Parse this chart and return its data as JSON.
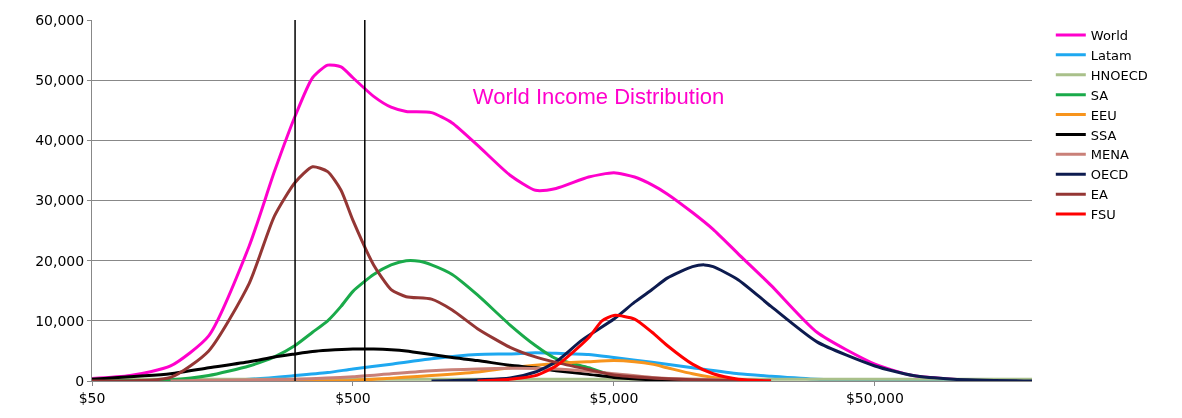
{
  "chart_data": {
    "type": "line",
    "title": "World Income Distribution",
    "log": "x",
    "grid": "y",
    "legend": "top right",
    "marker": "none",
    "line_style": "solid",
    "xlim": [
      50,
      200000
    ],
    "xticks": [
      {
        "value": 50,
        "label": "$50"
      },
      {
        "value": 500,
        "label": "$500"
      },
      {
        "value": 5000,
        "label": "$5,000"
      },
      {
        "value": 50000,
        "label": "$50,000"
      }
    ],
    "ylim": [
      0,
      60000
    ],
    "yticks": [
      0,
      {
        "value": 10000,
        "label": "10,000"
      },
      {
        "value": 20000,
        "label": "20,000"
      },
      {
        "value": 30000,
        "label": "30,000"
      },
      {
        "value": 40000,
        "label": "40,000"
      },
      {
        "value": 50000,
        "label": "50,000"
      },
      {
        "value": 60000,
        "label": "60,000"
      }
    ],
    "ref_lines": [
      {
        "axis": "x",
        "value": 300,
        "color": "#000000"
      },
      {
        "axis": "x",
        "value": 555,
        "color": "#000000"
      }
    ],
    "series": [
      {
        "name": "World",
        "color": "#ff00cc",
        "x": [
          50,
          70,
          100,
          140,
          200,
          250,
          300,
          350,
          400,
          450,
          500,
          600,
          700,
          800,
          1000,
          1200,
          1500,
          2000,
          2500,
          3000,
          4000,
          5000,
          6000,
          7000,
          8000,
          10000,
          12000,
          15000,
          20000,
          30000,
          50000,
          70000,
          100000,
          200000
        ],
        "values": [
          400,
          900,
          2500,
          7500,
          22400,
          34800,
          44000,
          50400,
          52500,
          52200,
          50400,
          47300,
          45500,
          44800,
          44600,
          42900,
          39200,
          34200,
          31700,
          32000,
          33900,
          34600,
          33900,
          32600,
          31100,
          28000,
          25200,
          21100,
          15900,
          8100,
          2800,
          900,
          300,
          0
        ]
      },
      {
        "name": "Latam",
        "color": "#1ea8f0",
        "x": [
          50,
          100,
          200,
          300,
          400,
          500,
          700,
          1000,
          1500,
          2000,
          2500,
          3000,
          4000,
          5000,
          7000,
          10000,
          15000,
          20000,
          30000,
          50000,
          200000
        ],
        "values": [
          0,
          100,
          300,
          900,
          1400,
          2000,
          2800,
          3700,
          4400,
          4500,
          4700,
          4600,
          4400,
          3900,
          3100,
          2200,
          1200,
          800,
          300,
          0,
          0
        ]
      },
      {
        "name": "HNOECD",
        "color": "#a9c08a",
        "x": [
          50,
          1000,
          10000,
          50000,
          200000
        ],
        "values": [
          300,
          300,
          300,
          300,
          300
        ]
      },
      {
        "name": "SA",
        "color": "#1aaa4a",
        "x": [
          50,
          100,
          140,
          200,
          250,
          300,
          350,
          400,
          450,
          500,
          600,
          700,
          800,
          900,
          1000,
          1200,
          1500,
          2000,
          2500,
          3000,
          4000,
          5000,
          7000,
          10000
        ],
        "values": [
          0,
          200,
          900,
          2500,
          4000,
          5900,
          8100,
          10000,
          12400,
          14900,
          17700,
          19300,
          20000,
          19900,
          19300,
          17700,
          14300,
          9300,
          5900,
          3700,
          2200,
          900,
          300,
          0
        ]
      },
      {
        "name": "EEU",
        "color": "#f7941d",
        "x": [
          200,
          500,
          1000,
          1500,
          2000,
          3000,
          4000,
          5000,
          6000,
          7000,
          8000,
          10000,
          12000,
          15000,
          20000
        ],
        "values": [
          0,
          100,
          900,
          1500,
          2200,
          2900,
          3200,
          3400,
          3200,
          2800,
          2200,
          1200,
          600,
          100,
          0
        ]
      },
      {
        "name": "SSA",
        "color": "#000000",
        "x": [
          50,
          100,
          140,
          200,
          250,
          300,
          350,
          400,
          500,
          600,
          700,
          800,
          1000,
          1200,
          1500,
          2000,
          2500,
          3000,
          4000,
          5000,
          7000,
          10000
        ],
        "values": [
          300,
          1200,
          2200,
          3200,
          4000,
          4500,
          4900,
          5100,
          5300,
          5300,
          5200,
          5000,
          4400,
          3900,
          3400,
          2600,
          2200,
          1700,
          1100,
          600,
          200,
          0
        ]
      },
      {
        "name": "MENA",
        "color": "#c98078",
        "x": [
          100,
          300,
          500,
          700,
          1000,
          1500,
          2000,
          3000,
          4000,
          5000,
          7000,
          10000,
          20000
        ],
        "values": [
          0,
          300,
          700,
          1200,
          1700,
          2000,
          2100,
          2000,
          1600,
          1200,
          600,
          300,
          0
        ]
      },
      {
        "name": "OECD",
        "color": "#0d1b4f",
        "x": [
          1000,
          2000,
          2500,
          3000,
          3770,
          5000,
          6000,
          7000,
          8000,
          10000,
          11100,
          12000,
          15000,
          20000,
          30000,
          50000,
          70000,
          100000,
          200000
        ],
        "values": [
          0,
          500,
          1500,
          3200,
          6800,
          10300,
          13100,
          15200,
          17100,
          19000,
          19300,
          19000,
          16800,
          12400,
          6500,
          2500,
          900,
          300,
          0
        ]
      },
      {
        "name": "EA",
        "color": "#943634",
        "x": [
          50,
          100,
          140,
          200,
          250,
          300,
          350,
          400,
          450,
          500,
          600,
          700,
          800,
          1000,
          1200,
          1500,
          2000,
          2500,
          3000,
          4000,
          5000,
          7000,
          10000,
          20000
        ],
        "values": [
          0,
          600,
          5000,
          16200,
          27400,
          33000,
          35600,
          34800,
          31700,
          26700,
          19300,
          15200,
          14000,
          13600,
          11800,
          8700,
          5600,
          4000,
          3100,
          1900,
          1000,
          500,
          200,
          0
        ]
      },
      {
        "name": "FSU",
        "color": "#ff0000",
        "x": [
          1500,
          2000,
          2500,
          3000,
          4000,
          4500,
          5000,
          6000,
          7000,
          8000,
          10000,
          12000,
          15000,
          20000
        ],
        "values": [
          0,
          300,
          900,
          2500,
          7200,
          10000,
          10900,
          10300,
          8100,
          5900,
          2800,
          1200,
          300,
          0
        ]
      }
    ]
  }
}
